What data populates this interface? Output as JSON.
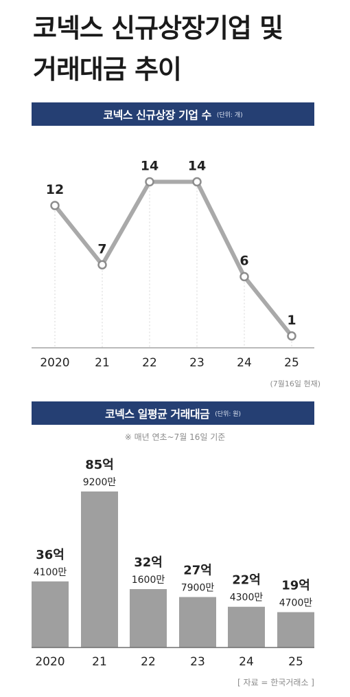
{
  "header": {
    "title_line1": "코넥스 신규상장기업 및",
    "title_line2": "거래대금 추이"
  },
  "colors": {
    "banner": "#253f73",
    "line": "#a9a9a9",
    "bar": "#9f9f9f",
    "marker_fill": "#ffffff"
  },
  "chart_data": [
    {
      "type": "line",
      "title": "코넥스 신규상장 기업 수",
      "unit": "(단위: 개)",
      "categories": [
        "2020",
        "21",
        "22",
        "23",
        "24",
        "25"
      ],
      "values": [
        12,
        7,
        14,
        14,
        6,
        1
      ],
      "value_labels": [
        "12",
        "7",
        "14",
        "14",
        "6",
        "1"
      ],
      "note": "(7월16일 현재)",
      "ylim": [
        0,
        16
      ],
      "grid": "vertical dotted"
    },
    {
      "type": "bar",
      "title": "코넥스 일평균 거래대금",
      "unit": "(단위: 원)",
      "note": "※ 매년 연초~7월 16일 기준",
      "categories": [
        "2020",
        "21",
        "22",
        "23",
        "24",
        "25"
      ],
      "values": [
        3641,
        8592,
        3216,
        2779,
        2243,
        1947
      ],
      "labels_big": [
        "36억",
        "85억",
        "32억",
        "27억",
        "22억",
        "19억"
      ],
      "labels_small": [
        "4100만",
        "9200만",
        "1600만",
        "7900만",
        "4300만",
        "4700만"
      ],
      "source": "[ 자료 = 한국거래소 ]"
    }
  ]
}
